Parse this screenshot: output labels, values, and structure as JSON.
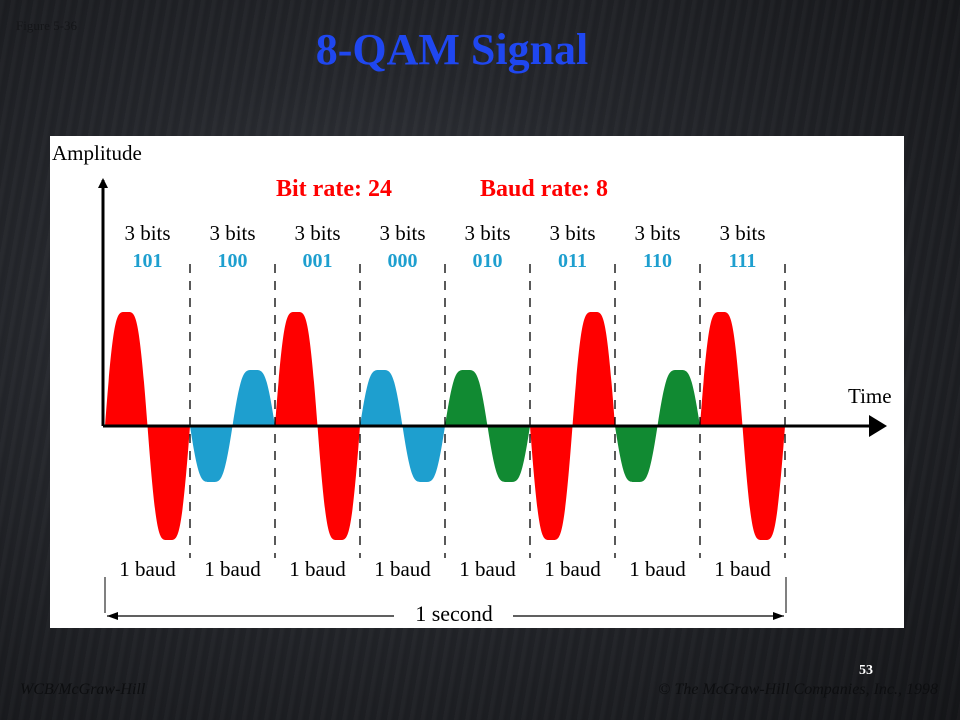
{
  "slide": {
    "figure_label": "Figure 5-36",
    "title": "8-QAM Signal",
    "page_number": "53",
    "footer_left": "WCB/McGraw-Hill",
    "copyright_symbol": "©",
    "footer_right": "The McGraw-Hill Companies, Inc., 1998"
  },
  "diagram": {
    "y_axis_label": "Amplitude",
    "x_axis_label": "Time",
    "bit_rate_label": "Bit rate: 24",
    "baud_rate_label": "Baud rate: 8",
    "interval_label": "1 second",
    "colors": {
      "high_amplitude": "#ff0000",
      "low_amplitude_blue": "#1e9fcf",
      "low_amplitude_green": "#118a32",
      "bit_codes": "#1e9fcf",
      "rate_labels": "#ff0000"
    },
    "segments": [
      {
        "bits_label": "3 bits",
        "code": "101",
        "baud_label": "1 baud",
        "amplitude": "high",
        "color": "#ff0000",
        "starts_positive": true
      },
      {
        "bits_label": "3 bits",
        "code": "100",
        "baud_label": "1 baud",
        "amplitude": "low",
        "color": "#1e9fcf",
        "starts_positive": false
      },
      {
        "bits_label": "3 bits",
        "code": "001",
        "baud_label": "1 baud",
        "amplitude": "high",
        "color": "#ff0000",
        "starts_positive": true
      },
      {
        "bits_label": "3 bits",
        "code": "000",
        "baud_label": "1 baud",
        "amplitude": "low",
        "color": "#1e9fcf",
        "starts_positive": true
      },
      {
        "bits_label": "3 bits",
        "code": "010",
        "baud_label": "1 baud",
        "amplitude": "low",
        "color": "#118a32",
        "starts_positive": true
      },
      {
        "bits_label": "3 bits",
        "code": "011",
        "baud_label": "1 baud",
        "amplitude": "high",
        "color": "#ff0000",
        "starts_positive": false
      },
      {
        "bits_label": "3 bits",
        "code": "110",
        "baud_label": "1 baud",
        "amplitude": "low",
        "color": "#118a32",
        "starts_positive": false
      },
      {
        "bits_label": "3 bits",
        "code": "111",
        "baud_label": "1 baud",
        "amplitude": "high",
        "color": "#ff0000",
        "starts_positive": true
      }
    ]
  }
}
